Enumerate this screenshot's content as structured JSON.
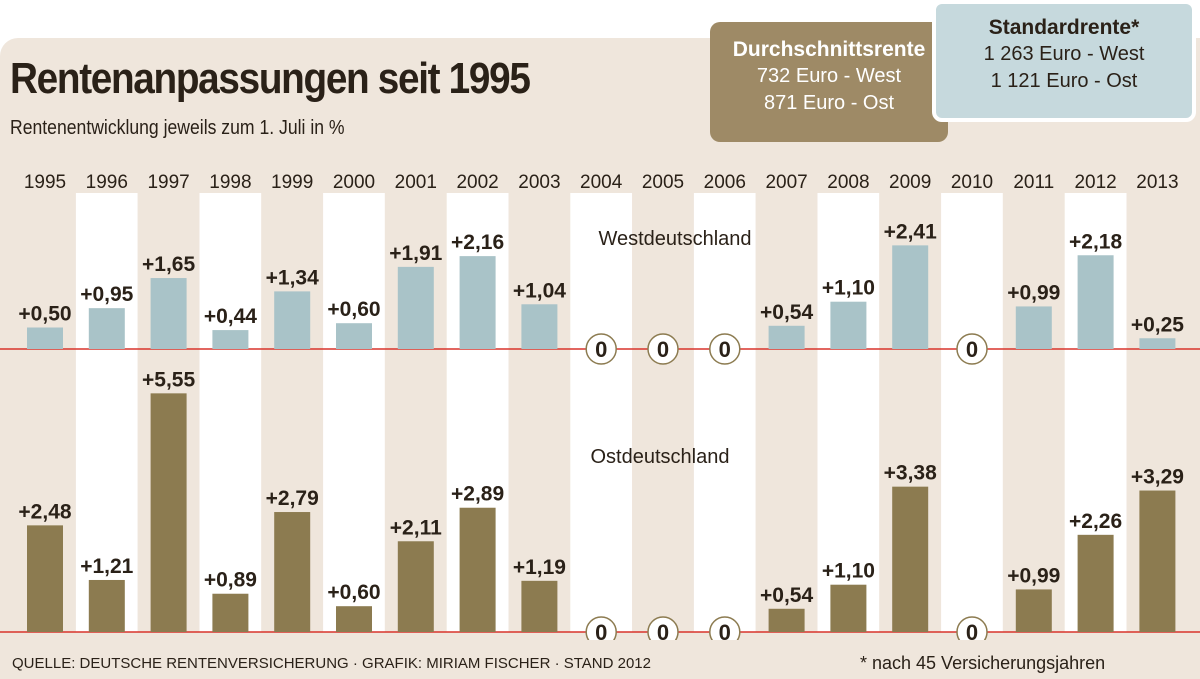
{
  "title": "Rentenanpassungen seit 1995",
  "subtitle": "Rentenentwicklung jeweils zum 1. Juli in %",
  "box_average": {
    "heading": "Durchschnittsrente",
    "line1": "732 Euro - West",
    "line2": "871 Euro - Ost"
  },
  "box_standard": {
    "heading": "Standardrente*",
    "line1": "1 263 Euro - West",
    "line2": "1 121 Euro - Ost"
  },
  "source": "QUELLE: DEUTSCHE RENTENVERSICHERUNG · GRAFIK: MIRIAM FISCHER · STAND 2012",
  "footnote": "* nach 45 Versicherungsjahren",
  "chart_data": {
    "type": "bar",
    "categories": [
      "1995",
      "1996",
      "1997",
      "1998",
      "1999",
      "2000",
      "2001",
      "2002",
      "2003",
      "2004",
      "2005",
      "2006",
      "2007",
      "2008",
      "2009",
      "2010",
      "2011",
      "2012",
      "2013"
    ],
    "series": [
      {
        "name": "Westdeutschland",
        "color": "#a9c3c8",
        "values": [
          0.5,
          0.95,
          1.65,
          0.44,
          1.34,
          0.6,
          1.91,
          2.16,
          1.04,
          0,
          0,
          0,
          0.54,
          1.1,
          2.41,
          0,
          0.99,
          2.18,
          0.25
        ],
        "labels": [
          "+0,50",
          "+0,95",
          "+1,65",
          "+0,44",
          "+1,34",
          "+0,60",
          "+1,91",
          "+2,16",
          "+1,04",
          "0",
          "0",
          "0",
          "+0,54",
          "+1,10",
          "+2,41",
          "0",
          "+0,99",
          "+2,18",
          "+0,25"
        ]
      },
      {
        "name": "Ostdeutschland",
        "color": "#8c7b50",
        "values": [
          2.48,
          1.21,
          5.55,
          0.89,
          2.79,
          0.6,
          2.11,
          2.89,
          1.19,
          0,
          0,
          0,
          0.54,
          1.1,
          3.38,
          0,
          0.99,
          2.26,
          3.29
        ],
        "labels": [
          "+2,48",
          "+1,21",
          "+5,55",
          "+0,89",
          "+2,79",
          "+0,60",
          "+2,11",
          "+2,89",
          "+1,19",
          "0",
          "0",
          "0",
          "+0,54",
          "+1,10",
          "+3,38",
          "0",
          "+0,99",
          "+2,26",
          "+3,29"
        ]
      }
    ],
    "baseline_color": "#d9342b"
  }
}
